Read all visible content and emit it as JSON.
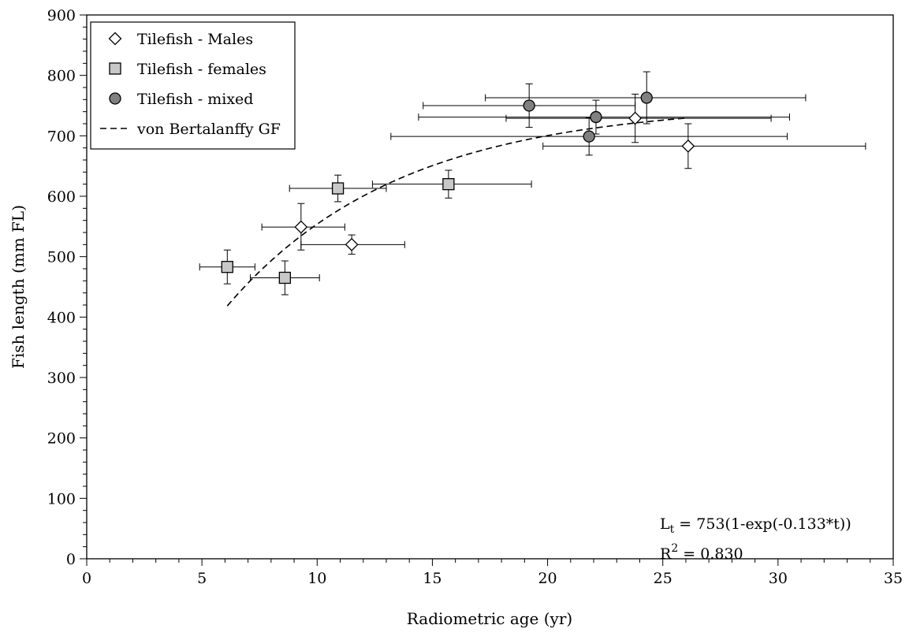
{
  "chart_data": {
    "type": "scatter",
    "xlabel": "Radiometric age (yr)",
    "ylabel": "Fish length (mm FL)",
    "xlim": [
      0,
      35
    ],
    "ylim": [
      0,
      900
    ],
    "x_ticks": [
      0,
      5,
      10,
      15,
      20,
      25,
      30,
      35
    ],
    "y_ticks": [
      0,
      100,
      200,
      300,
      400,
      500,
      600,
      700,
      800,
      900
    ],
    "grid": false,
    "legend_position": "top-left",
    "series": [
      {
        "name": "Tilefish - Males",
        "marker": "diamond",
        "fill": "#ffffff",
        "points": [
          {
            "x": 9.3,
            "y": 549,
            "xerr": [
              7.6,
              11.2
            ],
            "yerr": [
              511,
              588
            ]
          },
          {
            "x": 11.5,
            "y": 520,
            "xerr": [
              9.3,
              13.8
            ],
            "yerr": [
              504,
              536
            ]
          },
          {
            "x": 23.8,
            "y": 729,
            "xerr": [
              18.2,
              29.7
            ],
            "yerr": [
              689,
              769
            ]
          },
          {
            "x": 26.1,
            "y": 683,
            "xerr": [
              19.8,
              33.8
            ],
            "yerr": [
              646,
              720
            ]
          }
        ]
      },
      {
        "name": "Tilefish - females",
        "marker": "square",
        "fill": "#c8c8c8",
        "points": [
          {
            "x": 6.1,
            "y": 483,
            "xerr": [
              4.9,
              7.3
            ],
            "yerr": [
              455,
              511
            ]
          },
          {
            "x": 8.6,
            "y": 465,
            "xerr": [
              7.1,
              10.1
            ],
            "yerr": [
              437,
              493
            ]
          },
          {
            "x": 10.9,
            "y": 613,
            "xerr": [
              8.8,
              13.0
            ],
            "yerr": [
              591,
              635
            ]
          },
          {
            "x": 15.7,
            "y": 620,
            "xerr": [
              12.4,
              19.3
            ],
            "yerr": [
              597,
              643
            ]
          }
        ]
      },
      {
        "name": "Tilefish - mixed",
        "marker": "circle",
        "fill": "#808080",
        "points": [
          {
            "x": 19.2,
            "y": 750,
            "xerr": [
              14.6,
              23.8
            ],
            "yerr": [
              714,
              786
            ]
          },
          {
            "x": 22.1,
            "y": 731,
            "xerr": [
              14.4,
              30.5
            ],
            "yerr": [
              703,
              759
            ]
          },
          {
            "x": 21.8,
            "y": 699,
            "xerr": [
              13.2,
              30.4
            ],
            "yerr": [
              668,
              730
            ]
          },
          {
            "x": 24.3,
            "y": 763,
            "xerr": [
              17.3,
              31.2
            ],
            "yerr": [
              720,
              806
            ]
          }
        ]
      },
      {
        "name": "von Bertalanffy GF",
        "marker": "dashed-line",
        "fit": {
          "Linf": 753,
          "k": 0.133,
          "t_range": [
            6.1,
            26.1
          ]
        }
      }
    ],
    "annotations": {
      "equation_L": "L",
      "equation_sub": "t",
      "equation_rest": " = 753(1-exp(-0.133*t))",
      "r2_label": "R",
      "r2_sup": "2",
      "r2_rest": " = 0.830"
    }
  }
}
